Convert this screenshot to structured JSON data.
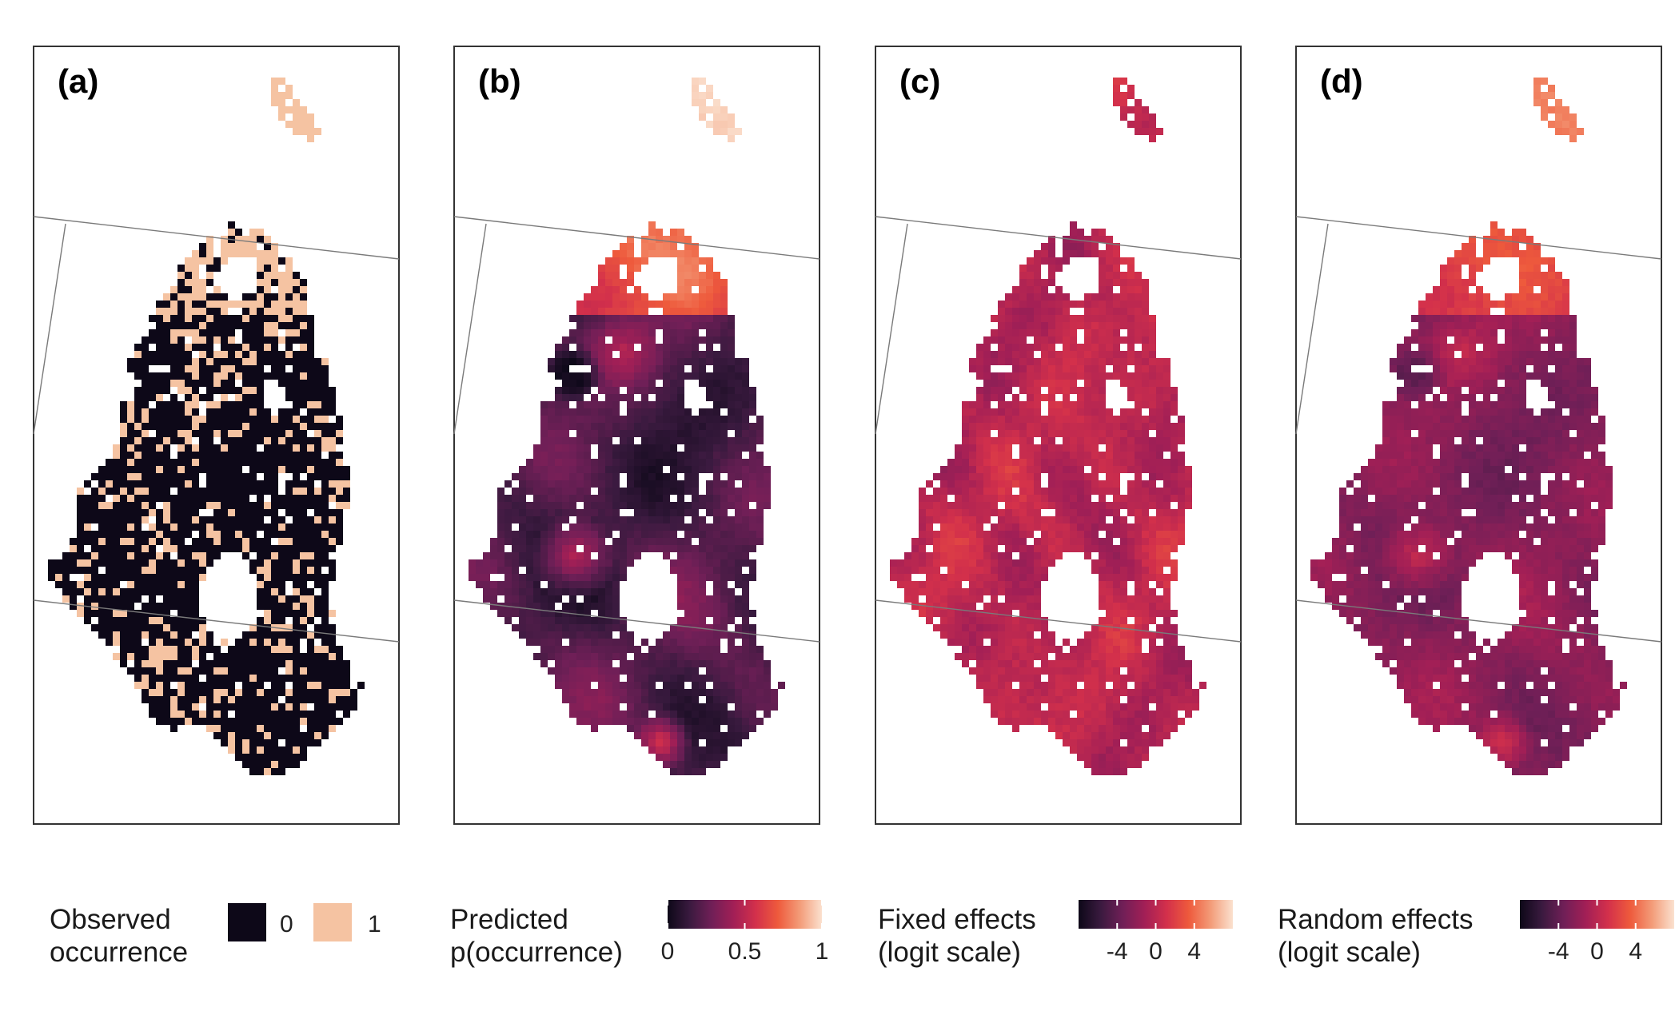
{
  "colors": {
    "frame": "#333333",
    "border_line": "#7a7a7a",
    "occurrence_0": "#0d0818",
    "occurrence_1": "#f5c3a2",
    "rocket_scale": [
      "#0d0818",
      "#3a1a3f",
      "#701f57",
      "#a21f56",
      "#d3304b",
      "#ee5a3c",
      "#f39c79",
      "#fbe1cf"
    ]
  },
  "panels": [
    {
      "id": "a",
      "label": "(a)",
      "legend": {
        "type": "discrete",
        "title_line1": "Observed",
        "title_line2": "occurrence",
        "keys": [
          {
            "label": "0",
            "color": "#0d0818"
          },
          {
            "label": "1",
            "color": "#f5c3a2"
          }
        ]
      }
    },
    {
      "id": "b",
      "label": "(b)",
      "legend": {
        "type": "continuous",
        "title_line1": "Predicted",
        "title_line2": "p(occurrence)",
        "ticks": [
          {
            "label": "0",
            "value": 0
          },
          {
            "label": "0.5",
            "value": 0.5
          },
          {
            "label": "1",
            "value": 1
          }
        ],
        "range": [
          0,
          1
        ]
      }
    },
    {
      "id": "c",
      "label": "(c)",
      "legend": {
        "type": "continuous",
        "title_line1": "Fixed effects",
        "title_line2": "(logit scale)",
        "ticks": [
          {
            "label": "-4",
            "value": -4
          },
          {
            "label": "0",
            "value": 0
          },
          {
            "label": "4",
            "value": 4
          }
        ],
        "range": [
          -8,
          8
        ]
      }
    },
    {
      "id": "d",
      "label": "(d)",
      "legend": {
        "type": "continuous",
        "title_line1": "Random effects",
        "title_line2": "(logit scale)",
        "ticks": [
          {
            "label": "-4",
            "value": -4
          },
          {
            "label": "0",
            "value": 0
          },
          {
            "label": "4",
            "value": 4
          }
        ],
        "range": [
          -8,
          8
        ]
      }
    }
  ]
}
